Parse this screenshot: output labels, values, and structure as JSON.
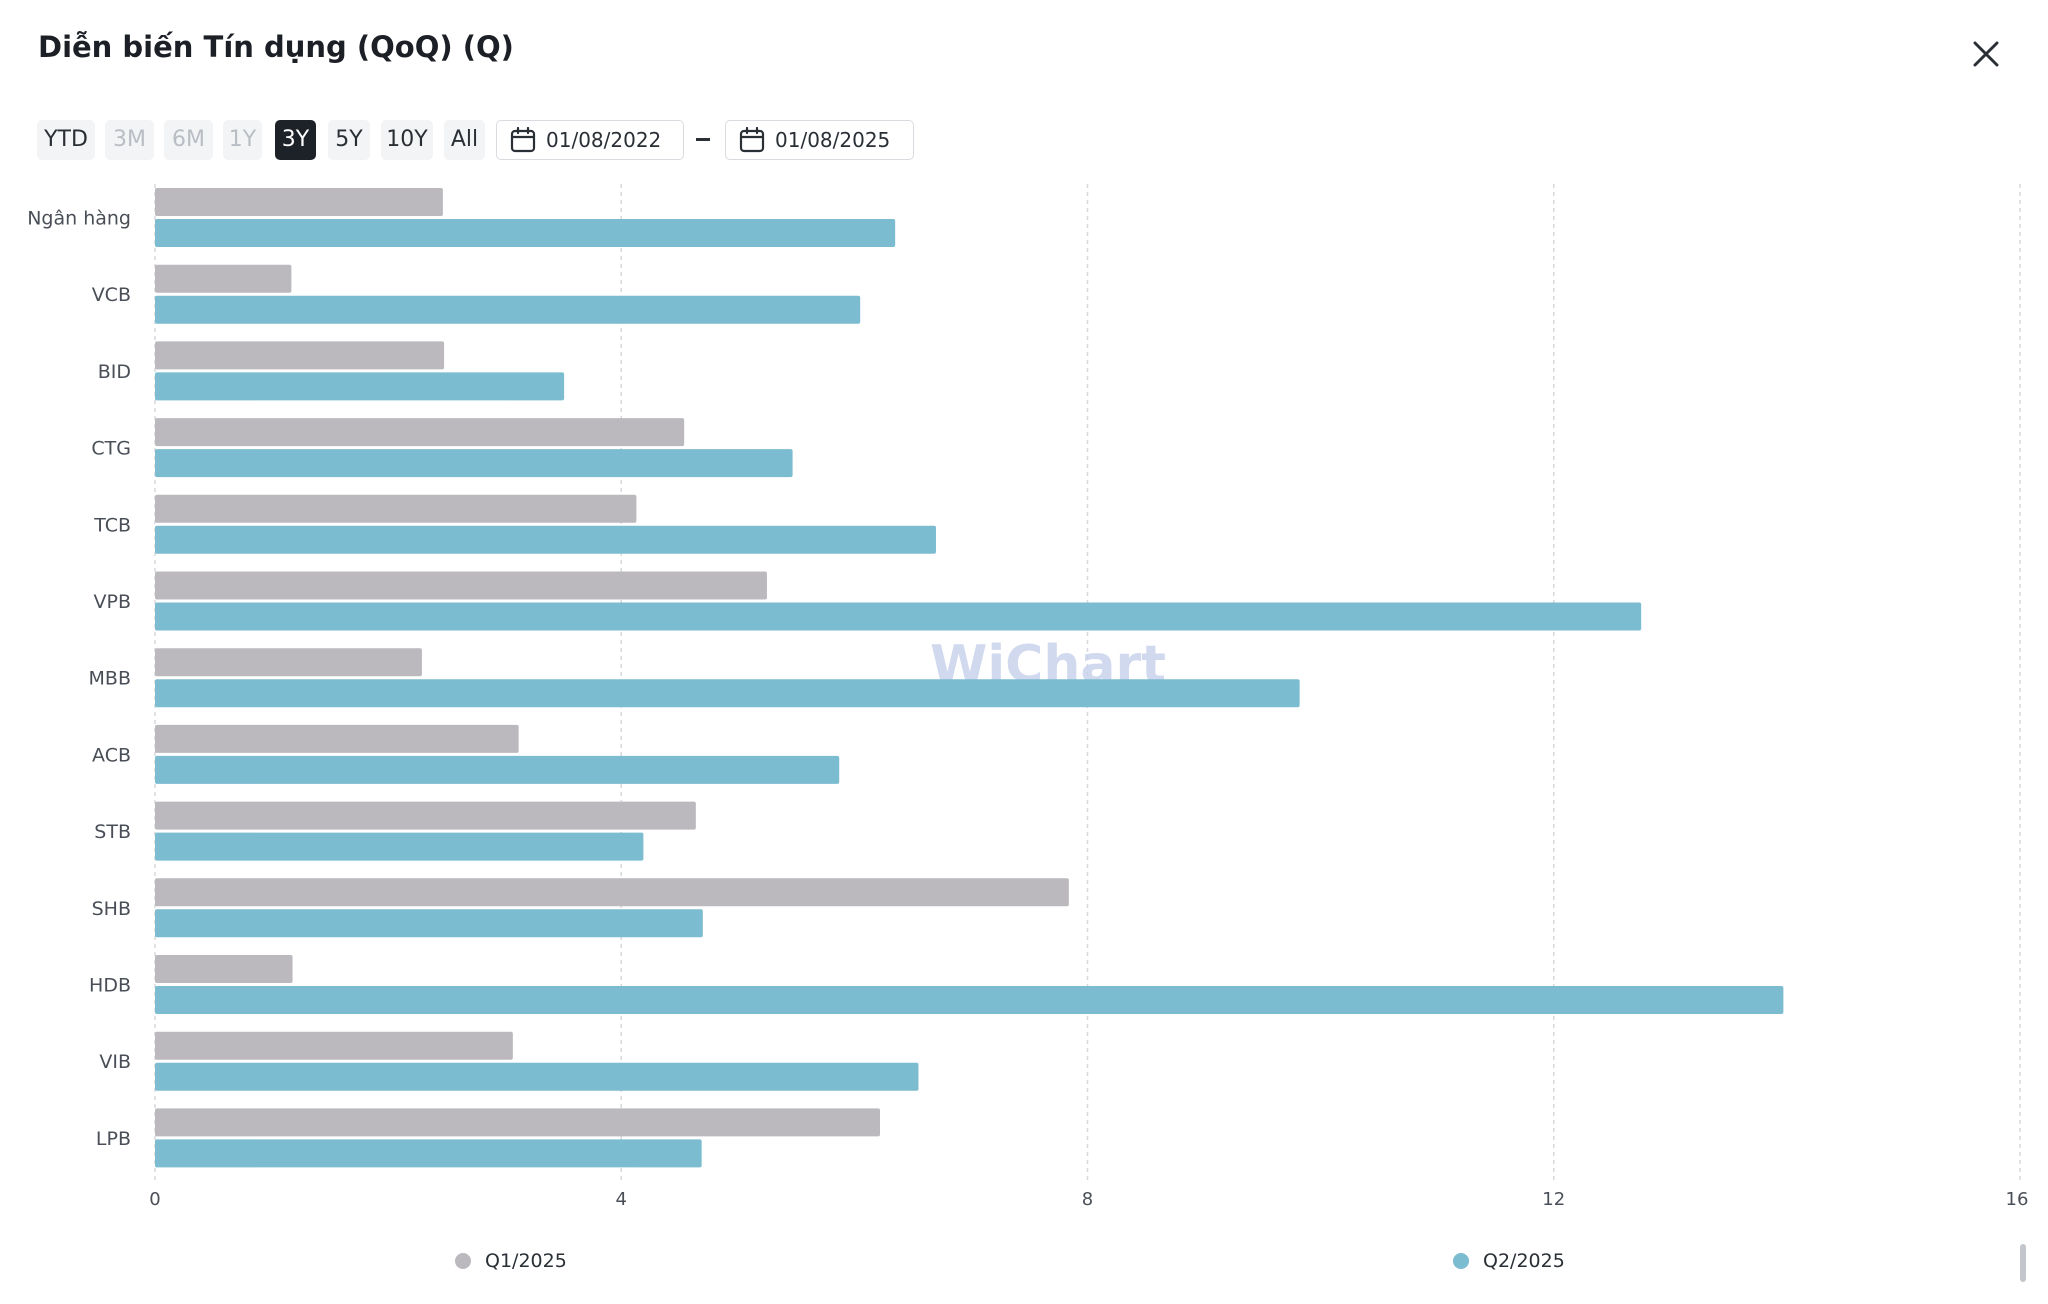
{
  "header": {
    "title": "Diễn biến Tín dụng (QoQ) (Q)",
    "close_icon": "close-icon"
  },
  "toolbar": {
    "periods": [
      {
        "label": "YTD",
        "state": "enabled"
      },
      {
        "label": "3M",
        "state": "disabled"
      },
      {
        "label": "6M",
        "state": "disabled"
      },
      {
        "label": "1Y",
        "state": "disabled"
      },
      {
        "label": "3Y",
        "state": "active"
      },
      {
        "label": "5Y",
        "state": "enabled"
      },
      {
        "label": "10Y",
        "state": "enabled"
      },
      {
        "label": "All",
        "state": "enabled"
      }
    ],
    "date_from": "01/08/2022",
    "date_to": "01/08/2025",
    "calendar_icon": "calendar-icon"
  },
  "watermark": "WiChart",
  "colors": {
    "q1": "#bbb9bd",
    "q2": "#7bbcd0",
    "grid": "#d6d8dc",
    "active_btn": "#1d2128"
  },
  "chart_data": {
    "type": "bar",
    "orientation": "horizontal",
    "categories": [
      "Ngân hàng",
      "VCB",
      "BID",
      "CTG",
      "TCB",
      "VPB",
      "MBB",
      "ACB",
      "STB",
      "SHB",
      "HDB",
      "VIB",
      "LPB"
    ],
    "series": [
      {
        "name": "Q1/2025",
        "color": "#bbb9bd",
        "values": [
          2.47,
          1.17,
          2.48,
          4.54,
          4.13,
          5.25,
          2.29,
          3.12,
          4.64,
          7.84,
          1.18,
          3.07,
          6.22
        ]
      },
      {
        "name": "Q2/2025",
        "color": "#7bbcd0",
        "values": [
          6.35,
          6.05,
          3.51,
          5.47,
          6.7,
          12.75,
          9.82,
          5.87,
          4.19,
          4.7,
          13.97,
          6.55,
          4.69
        ]
      }
    ],
    "xlim": [
      0,
      16
    ],
    "xticks": [
      0,
      4,
      8,
      12,
      16
    ],
    "grid": "vertical-dashed",
    "legend_position": "bottom"
  }
}
